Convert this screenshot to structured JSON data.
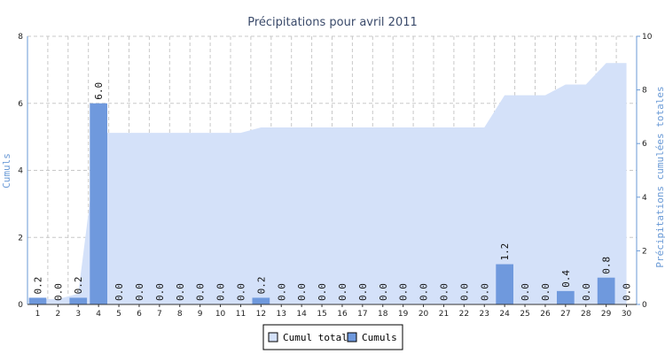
{
  "chart_data": {
    "type": "bar",
    "title": "Précipitations pour avril 2011",
    "ylabel": "Cumuls",
    "y2label": "Précipitations cumulées totales",
    "ylim": [
      0,
      8
    ],
    "y2lim": [
      0,
      10
    ],
    "yticks": [
      "0",
      "2",
      "4",
      "6",
      "8"
    ],
    "y2ticks": [
      "0",
      "2",
      "4",
      "6",
      "8",
      "10"
    ],
    "grid": true,
    "legend_position": "bottom-center",
    "categories": [
      "1",
      "2",
      "3",
      "4",
      "5",
      "6",
      "7",
      "8",
      "9",
      "10",
      "11",
      "12",
      "13",
      "14",
      "15",
      "16",
      "17",
      "18",
      "19",
      "20",
      "21",
      "22",
      "23",
      "24",
      "25",
      "26",
      "27",
      "28",
      "29",
      "30"
    ],
    "series": [
      {
        "name": "Cumuls",
        "kind": "bar",
        "axis": "left",
        "color": "#6f99dd",
        "values": [
          0.2,
          0.0,
          0.2,
          6.0,
          0.0,
          0.0,
          0.0,
          0.0,
          0.0,
          0.0,
          0.0,
          0.2,
          0.0,
          0.0,
          0.0,
          0.0,
          0.0,
          0.0,
          0.0,
          0.0,
          0.0,
          0.0,
          0.0,
          1.2,
          0.0,
          0.0,
          0.4,
          0.0,
          0.8,
          0.0
        ],
        "labels": [
          "0.2",
          "0.0",
          "0.2",
          "6.0",
          "0.0",
          "0.0",
          "0.0",
          "0.0",
          "0.0",
          "0.0",
          "0.0",
          "0.2",
          "0.0",
          "0.0",
          "0.0",
          "0.0",
          "0.0",
          "0.0",
          "0.0",
          "0.0",
          "0.0",
          "0.0",
          "0.0",
          "1.2",
          "0.0",
          "0.0",
          "0.4",
          "0.0",
          "0.8",
          "0.0"
        ]
      },
      {
        "name": "Cumul total",
        "kind": "area",
        "axis": "right",
        "color": "#d4e1f9",
        "values": [
          0.2,
          0.2,
          0.4,
          6.4,
          6.4,
          6.4,
          6.4,
          6.4,
          6.4,
          6.4,
          6.4,
          6.6,
          6.6,
          6.6,
          6.6,
          6.6,
          6.6,
          6.6,
          6.6,
          6.6,
          6.6,
          6.6,
          6.6,
          7.8,
          7.8,
          7.8,
          8.2,
          8.2,
          9.0,
          9.0
        ]
      }
    ],
    "legend": [
      "Cumul total",
      "Cumuls"
    ]
  }
}
